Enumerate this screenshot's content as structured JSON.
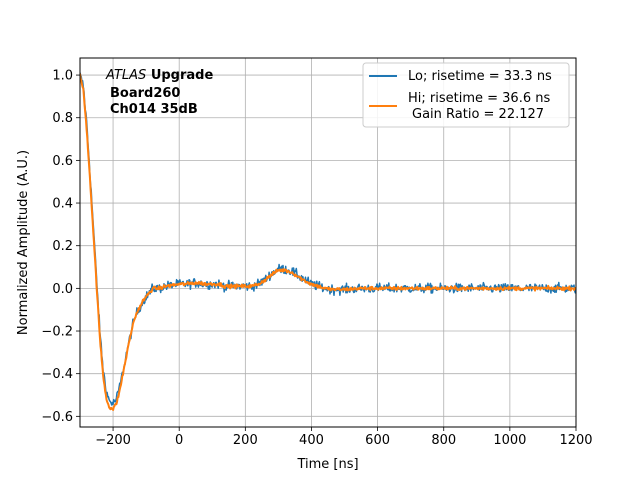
{
  "chart_data": {
    "type": "line",
    "title": "",
    "xlabel": "Time [ns]",
    "ylabel": "Normalized Amplitude (A.U.)",
    "xlim": [
      -300,
      1200
    ],
    "ylim": [
      -0.65,
      1.08
    ],
    "x_ticks": [
      -200,
      0,
      200,
      400,
      600,
      800,
      1000,
      1200
    ],
    "x_tick_labels": [
      "−200",
      "0",
      "200",
      "400",
      "600",
      "800",
      "1000",
      "1200"
    ],
    "y_ticks": [
      -0.6,
      -0.4,
      -0.2,
      0.0,
      0.2,
      0.4,
      0.6,
      0.8,
      1.0
    ],
    "y_tick_labels": [
      "−0.6",
      "−0.4",
      "−0.2",
      "0.0",
      "0.2",
      "0.4",
      "0.6",
      "0.8",
      "1.0"
    ],
    "grid": true,
    "legend_position": "top-right",
    "annotation": {
      "atlas": "ATLAS",
      "upgrade": "Upgrade",
      "board": "Board260",
      "channel": "Ch014 35dB"
    },
    "series": [
      {
        "name": "Lo; risetime = 33.3 ns",
        "color": "#1f77b4",
        "noise": 0.022,
        "x": [
          -300,
          -290,
          -280,
          -270,
          -260,
          -250,
          -240,
          -230,
          -220,
          -210,
          -200,
          -190,
          -180,
          -170,
          -160,
          -150,
          -140,
          -130,
          -120,
          -110,
          -100,
          -90,
          -80,
          -60,
          -40,
          -20,
          0,
          20,
          40,
          60,
          80,
          100,
          120,
          140,
          160,
          180,
          200,
          220,
          240,
          260,
          280,
          300,
          320,
          340,
          360,
          380,
          400,
          420,
          440,
          460,
          480,
          500,
          550,
          600,
          650,
          700,
          750,
          800,
          850,
          900,
          950,
          1000,
          1050,
          1100,
          1150,
          1200
        ],
        "y": [
          1.0,
          0.95,
          0.78,
          0.55,
          0.3,
          0.05,
          -0.2,
          -0.38,
          -0.49,
          -0.53,
          -0.54,
          -0.52,
          -0.46,
          -0.39,
          -0.31,
          -0.24,
          -0.17,
          -0.12,
          -0.09,
          -0.06,
          -0.04,
          -0.02,
          0.0,
          0.0,
          0.01,
          0.015,
          0.02,
          0.02,
          0.025,
          0.025,
          0.02,
          0.02,
          0.02,
          0.01,
          0.01,
          0.01,
          0.01,
          0.01,
          0.02,
          0.04,
          0.07,
          0.09,
          0.09,
          0.08,
          0.06,
          0.04,
          0.02,
          0.01,
          0.0,
          -0.005,
          -0.005,
          -0.005,
          0.0,
          0.0,
          0.0,
          0.0,
          0.0,
          0.0,
          0.0,
          0.0,
          0.0,
          0.0,
          0.0,
          0.0,
          0.0,
          0.0
        ]
      },
      {
        "name": "Hi; risetime = 36.6 ns",
        "name_line2": "Gain Ratio = 22.127",
        "color": "#ff7f0e",
        "noise": 0.008,
        "x": [
          -300,
          -290,
          -280,
          -270,
          -260,
          -250,
          -240,
          -230,
          -220,
          -210,
          -200,
          -190,
          -180,
          -170,
          -160,
          -150,
          -140,
          -130,
          -120,
          -110,
          -100,
          -90,
          -80,
          -60,
          -40,
          -20,
          0,
          20,
          40,
          60,
          80,
          100,
          120,
          140,
          160,
          180,
          200,
          220,
          240,
          260,
          280,
          300,
          320,
          340,
          360,
          380,
          400,
          420,
          440,
          460,
          480,
          500,
          550,
          600,
          650,
          700,
          750,
          800,
          850,
          900,
          950,
          1000,
          1050,
          1100,
          1150,
          1200
        ],
        "y": [
          1.0,
          0.93,
          0.75,
          0.52,
          0.27,
          0.02,
          -0.23,
          -0.41,
          -0.52,
          -0.56,
          -0.565,
          -0.54,
          -0.48,
          -0.4,
          -0.32,
          -0.24,
          -0.17,
          -0.12,
          -0.09,
          -0.06,
          -0.04,
          -0.02,
          0.0,
          0.0,
          0.01,
          0.015,
          0.02,
          0.02,
          0.025,
          0.025,
          0.02,
          0.02,
          0.02,
          0.01,
          0.01,
          0.01,
          0.01,
          0.01,
          0.02,
          0.04,
          0.065,
          0.085,
          0.085,
          0.075,
          0.055,
          0.035,
          0.02,
          0.01,
          0.0,
          -0.005,
          -0.005,
          -0.005,
          0.0,
          0.0,
          0.0,
          0.0,
          0.0,
          0.0,
          0.0,
          0.0,
          0.0,
          0.0,
          0.0,
          0.0,
          0.0,
          0.0
        ]
      }
    ]
  }
}
